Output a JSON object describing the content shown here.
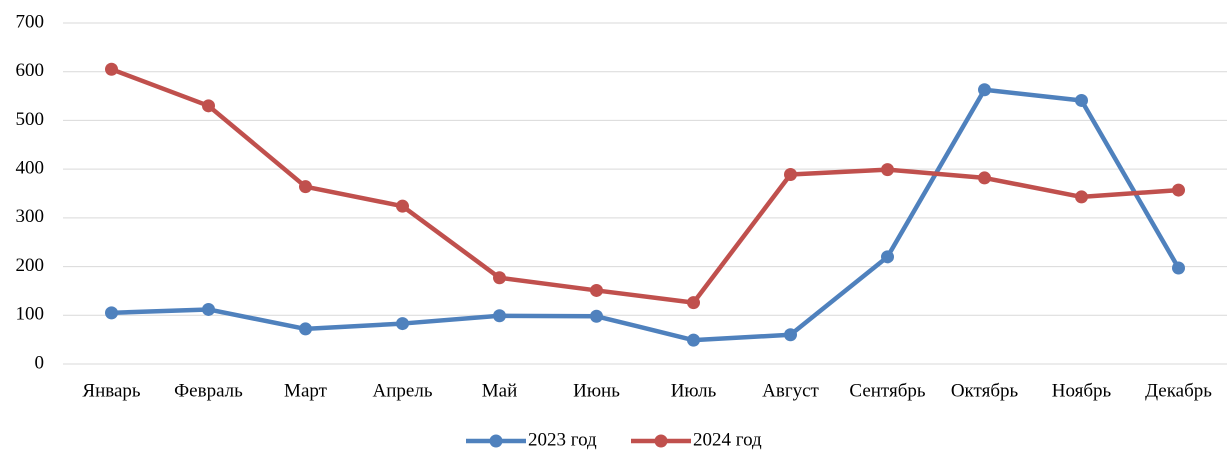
{
  "chart_data": {
    "type": "line",
    "categories": [
      "Январь",
      "Февраль",
      "Март",
      "Апрель",
      "Май",
      "Июнь",
      "Июль",
      "Август",
      "Сентябрь",
      "Октябрь",
      "Ноябрь",
      "Декабрь"
    ],
    "series": [
      {
        "name": "2023 год",
        "color": "#4f81bd",
        "values": [
          105,
          112,
          72,
          83,
          99,
          98,
          49,
          60,
          220,
          563,
          541,
          197
        ]
      },
      {
        "name": "2024 год",
        "color": "#c0504d",
        "values": [
          605,
          530,
          364,
          324,
          177,
          151,
          126,
          389,
          399,
          382,
          343,
          357
        ]
      }
    ],
    "ylim": [
      0,
      700
    ],
    "yticks": [
      0,
      100,
      200,
      300,
      400,
      500,
      600,
      700
    ],
    "grid": true,
    "legend": "bottom"
  }
}
